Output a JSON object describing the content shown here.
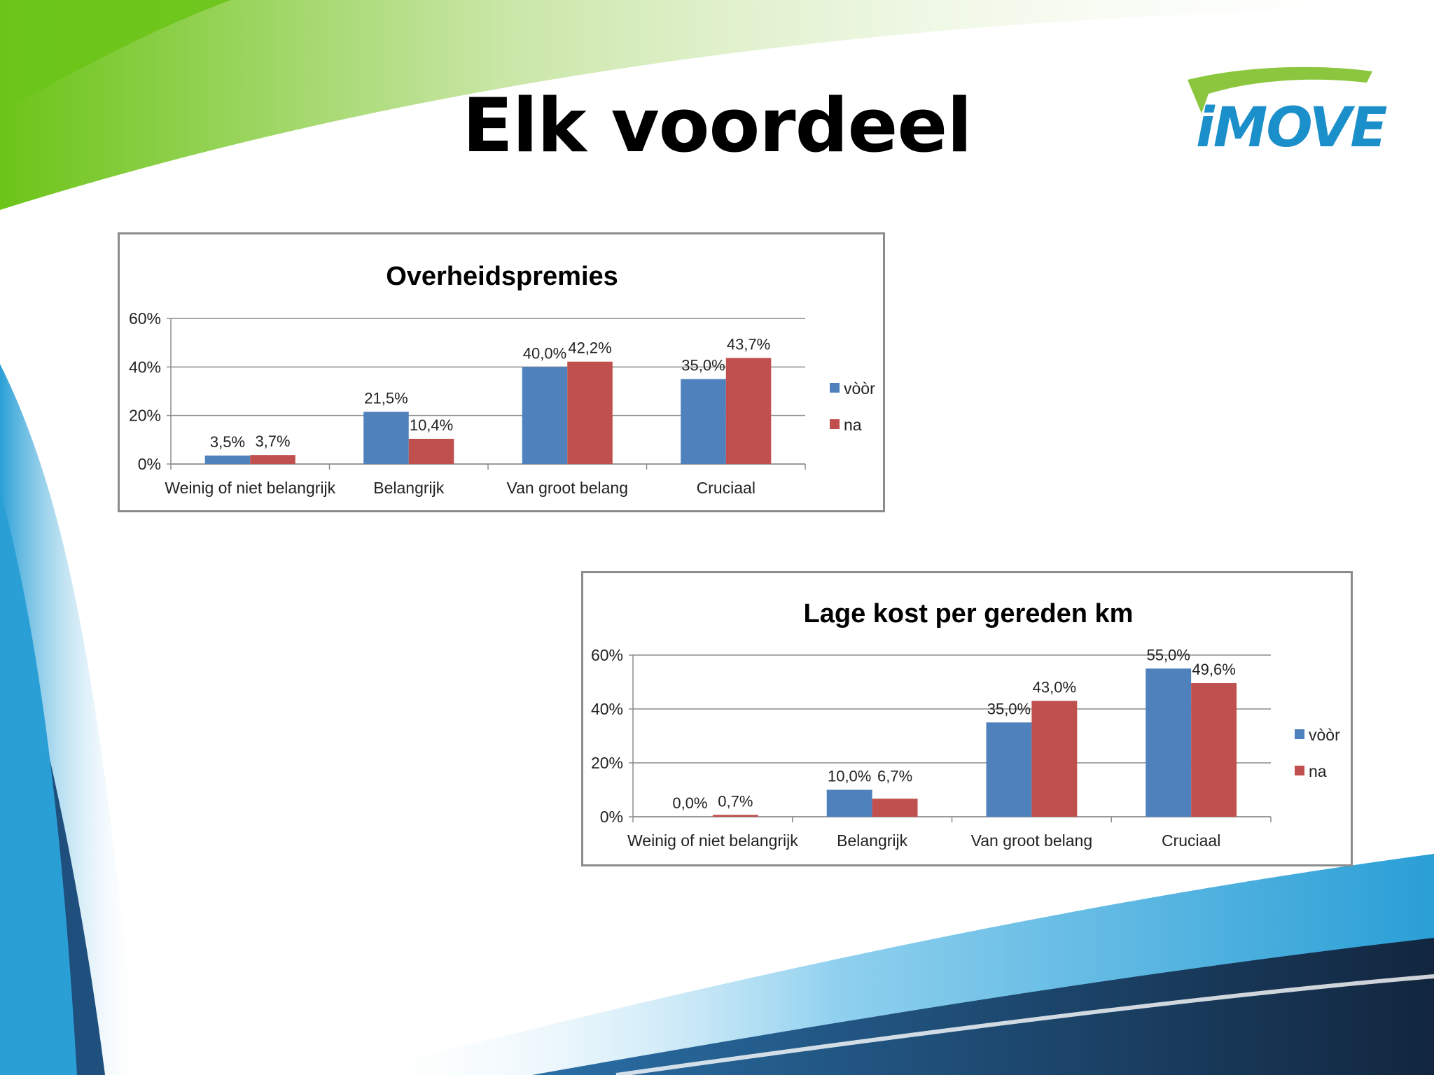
{
  "slide": {
    "title": "Elk voordeel",
    "logo_text": "iMOVE"
  },
  "colors": {
    "voor": "#4f81bd",
    "na": "#c0504d",
    "grid": "#8c8c8c",
    "green": "#7cc42a",
    "blue": "#1b8fc9",
    "navy": "#1d3a5e"
  },
  "chart_data": [
    {
      "type": "bar",
      "title": "Overheidspremies",
      "categories": [
        "Weinig of niet belangrijk",
        "Belangrijk",
        "Van groot belang",
        "Cruciaal"
      ],
      "series": [
        {
          "name": "vòòr",
          "values": [
            3.5,
            21.5,
            40.0,
            35.0
          ],
          "labels": [
            "3,5%",
            "21,5%",
            "40,0%",
            "35,0%"
          ]
        },
        {
          "name": "na",
          "values": [
            3.7,
            10.4,
            42.2,
            43.7
          ],
          "labels": [
            "3,7%",
            "10,4%",
            "42,2%",
            "43,7%"
          ]
        }
      ],
      "yticks": [
        "0%",
        "20%",
        "40%",
        "60%"
      ],
      "ylim": [
        0,
        60
      ],
      "grid": true,
      "legend": "right"
    },
    {
      "type": "bar",
      "title": "Lage kost per gereden km",
      "categories": [
        "Weinig of niet belangrijk",
        "Belangrijk",
        "Van groot belang",
        "Cruciaal"
      ],
      "series": [
        {
          "name": "vòòr",
          "values": [
            0.0,
            10.0,
            35.0,
            55.0
          ],
          "labels": [
            "0,0%",
            "10,0%",
            "35,0%",
            "55,0%"
          ]
        },
        {
          "name": "na",
          "values": [
            0.7,
            6.7,
            43.0,
            49.6
          ],
          "labels": [
            "0,7%",
            "6,7%",
            "43,0%",
            "49,6%"
          ]
        }
      ],
      "yticks": [
        "0%",
        "20%",
        "40%",
        "60%"
      ],
      "ylim": [
        0,
        60
      ],
      "grid": true,
      "legend": "right"
    }
  ]
}
